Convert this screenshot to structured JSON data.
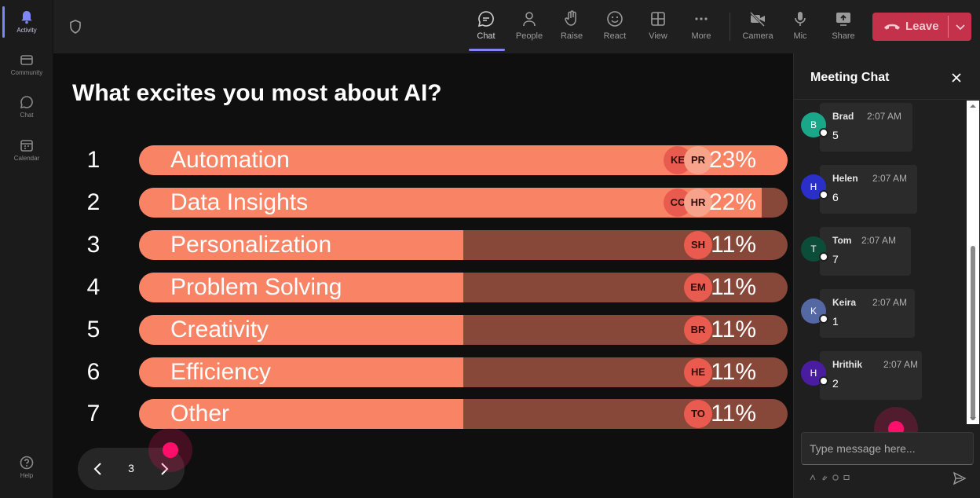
{
  "rail": {
    "items": [
      {
        "label": "Activity",
        "icon": "bell-icon"
      },
      {
        "label": "Community",
        "icon": "community-icon"
      },
      {
        "label": "Chat",
        "icon": "chat-icon"
      },
      {
        "label": "Calendar",
        "icon": "calendar-icon"
      },
      {
        "label": "Help",
        "icon": "help-icon"
      }
    ]
  },
  "toolbar": {
    "chat": "Chat",
    "people": "People",
    "raise": "Raise",
    "react": "React",
    "view": "View",
    "more": "More",
    "camera": "Camera",
    "mic": "Mic",
    "share": "Share",
    "leave": "Leave"
  },
  "poll": {
    "question": "What excites you most about AI?",
    "options": [
      {
        "rank": "1",
        "label": "Automation",
        "percent": "23%",
        "fill": 1.0,
        "avatars": [
          "KE",
          "PR"
        ]
      },
      {
        "rank": "2",
        "label": "Data Insights",
        "percent": "22%",
        "fill": 0.96,
        "avatars": [
          "CC",
          "HR"
        ]
      },
      {
        "rank": "3",
        "label": "Personalization",
        "percent": "11%",
        "fill": 0.5,
        "avatars": [
          "SH"
        ]
      },
      {
        "rank": "4",
        "label": "Problem Solving",
        "percent": "11%",
        "fill": 0.5,
        "avatars": [
          "EM"
        ]
      },
      {
        "rank": "5",
        "label": "Creativity",
        "percent": "11%",
        "fill": 0.5,
        "avatars": [
          "BR"
        ]
      },
      {
        "rank": "6",
        "label": "Efficiency",
        "percent": "11%",
        "fill": 0.5,
        "avatars": [
          "HE"
        ]
      },
      {
        "rank": "7",
        "label": "Other",
        "percent": "11%",
        "fill": 0.5,
        "avatars": [
          "TO"
        ]
      }
    ],
    "page": "3"
  },
  "chat": {
    "title": "Meeting Chat",
    "messages": [
      {
        "initial": "B",
        "name": "Brad",
        "time": "2:07 AM",
        "text": "5",
        "color": "#1aa789"
      },
      {
        "initial": "H",
        "name": "Helen",
        "time": "2:07 AM",
        "text": "6",
        "color": "#2a2fc9"
      },
      {
        "initial": "T",
        "name": "Tom",
        "time": "2:07 AM",
        "text": "7",
        "color": "#0c4d3a"
      },
      {
        "initial": "K",
        "name": "Keira",
        "time": "2:07 AM",
        "text": "1",
        "color": "#5468a4"
      },
      {
        "initial": "H",
        "name": "Hrithik",
        "time": "2:07 AM",
        "text": "2",
        "color": "#4a1da0"
      }
    ],
    "placeholder": "Type message here..."
  },
  "colors": {
    "bar_fill": "#f98365",
    "bar_track": "#874839",
    "avatar": "#ea5b4f",
    "leave": "#c4314b",
    "accent": "#7f85f5"
  }
}
